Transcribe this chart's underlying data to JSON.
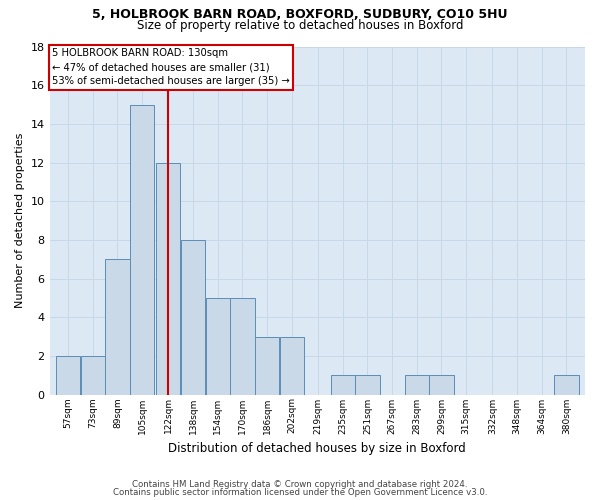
{
  "title1": "5, HOLBROOK BARN ROAD, BOXFORD, SUDBURY, CO10 5HU",
  "title2": "Size of property relative to detached houses in Boxford",
  "xlabel": "Distribution of detached houses by size in Boxford",
  "ylabel": "Number of detached properties",
  "bin_labels": [
    "57sqm",
    "73sqm",
    "89sqm",
    "105sqm",
    "122sqm",
    "138sqm",
    "154sqm",
    "170sqm",
    "186sqm",
    "202sqm",
    "219sqm",
    "235sqm",
    "251sqm",
    "267sqm",
    "283sqm",
    "299sqm",
    "315sqm",
    "332sqm",
    "348sqm",
    "364sqm",
    "380sqm"
  ],
  "bin_starts": [
    57,
    73,
    89,
    105,
    122,
    138,
    154,
    170,
    186,
    202,
    219,
    235,
    251,
    267,
    283,
    299,
    315,
    332,
    348,
    364,
    380
  ],
  "bin_width": 16,
  "values": [
    2,
    2,
    7,
    15,
    12,
    8,
    5,
    5,
    3,
    3,
    0,
    1,
    1,
    0,
    1,
    1,
    0,
    0,
    0,
    0,
    1
  ],
  "bar_color": "#c9d9e8",
  "bar_edge_color": "#5b8db8",
  "property_size": 130,
  "red_line_color": "#cc0000",
  "annotation_line1": "5 HOLBROOK BARN ROAD: 130sqm",
  "annotation_line2": "← 47% of detached houses are smaller (31)",
  "annotation_line3": "53% of semi-detached houses are larger (35) →",
  "annotation_box_color": "#ffffff",
  "annotation_box_edge_color": "#cc0000",
  "ylim": [
    0,
    18
  ],
  "yticks": [
    0,
    2,
    4,
    6,
    8,
    10,
    12,
    14,
    16,
    18
  ],
  "footer1": "Contains HM Land Registry data © Crown copyright and database right 2024.",
  "footer2": "Contains public sector information licensed under the Open Government Licence v3.0.",
  "grid_color": "#c8d8e8",
  "background_color": "#dce9f5"
}
